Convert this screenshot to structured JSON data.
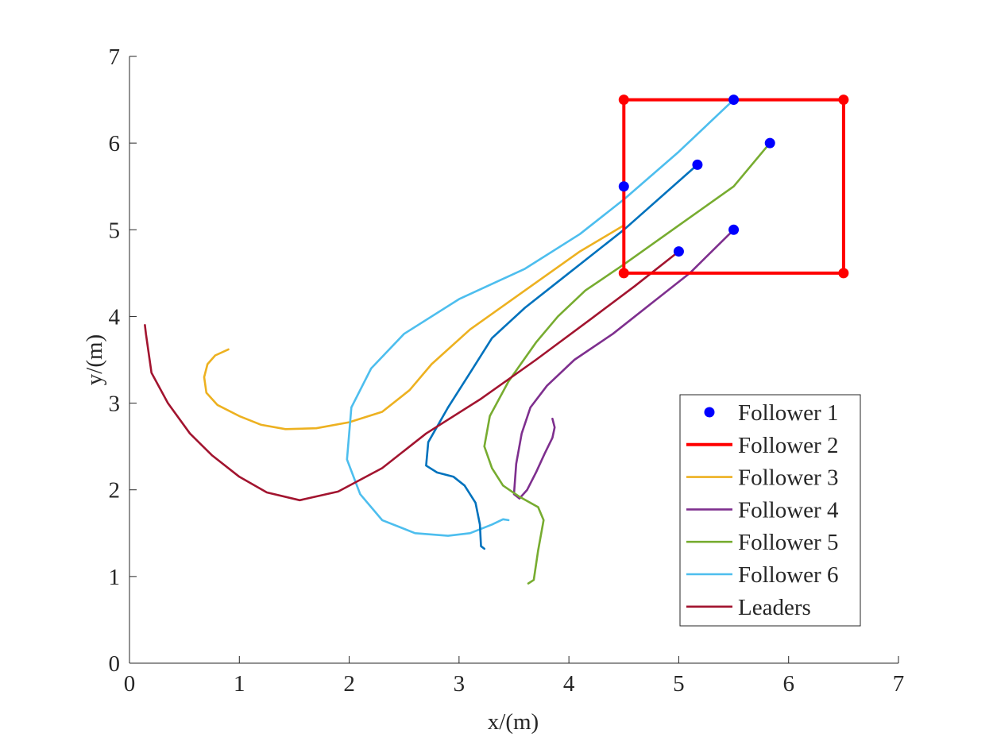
{
  "chart_data": {
    "type": "line",
    "xlabel": "x/(m)",
    "ylabel": "y/(m)",
    "xlim": [
      0,
      7
    ],
    "ylim": [
      0,
      7
    ],
    "xticks": [
      0,
      1,
      2,
      3,
      4,
      5,
      6,
      7
    ],
    "yticks": [
      0,
      1,
      2,
      3,
      4,
      5,
      6,
      7
    ],
    "grid": false,
    "legend_position": "bottom-right",
    "series": [
      {
        "name": "Follower 1",
        "kind": "markers",
        "color": "#0000ff",
        "points": [
          [
            4.5,
            5.5
          ],
          [
            5.17,
            5.75
          ],
          [
            5.5,
            6.5
          ],
          [
            5.83,
            6.0
          ],
          [
            5.5,
            5.0
          ],
          [
            5.0,
            4.75
          ]
        ]
      },
      {
        "name": "Follower 2",
        "kind": "polygon",
        "color": "#ff0000",
        "points": [
          [
            4.5,
            4.5
          ],
          [
            4.5,
            6.5
          ],
          [
            6.5,
            6.5
          ],
          [
            6.5,
            4.5
          ],
          [
            4.5,
            4.5
          ]
        ]
      },
      {
        "name": "Follower 3",
        "kind": "line",
        "color": "#edb120",
        "points": [
          [
            0.9,
            3.62
          ],
          [
            0.78,
            3.55
          ],
          [
            0.71,
            3.45
          ],
          [
            0.68,
            3.3
          ],
          [
            0.7,
            3.12
          ],
          [
            0.8,
            2.98
          ],
          [
            1.0,
            2.85
          ],
          [
            1.2,
            2.75
          ],
          [
            1.42,
            2.7
          ],
          [
            1.7,
            2.71
          ],
          [
            2.0,
            2.78
          ],
          [
            2.3,
            2.9
          ],
          [
            2.55,
            3.15
          ],
          [
            2.75,
            3.45
          ],
          [
            3.1,
            3.85
          ],
          [
            3.6,
            4.3
          ],
          [
            4.1,
            4.75
          ],
          [
            4.5,
            5.05
          ],
          [
            4.5,
            5.5
          ]
        ]
      },
      {
        "name": "Follower 4",
        "kind": "line",
        "color": "#7e2f8e",
        "points": [
          [
            3.85,
            2.82
          ],
          [
            3.87,
            2.72
          ],
          [
            3.85,
            2.6
          ],
          [
            3.78,
            2.42
          ],
          [
            3.7,
            2.2
          ],
          [
            3.62,
            2.0
          ],
          [
            3.55,
            1.9
          ],
          [
            3.5,
            1.95
          ],
          [
            3.52,
            2.3
          ],
          [
            3.57,
            2.65
          ],
          [
            3.65,
            2.95
          ],
          [
            3.8,
            3.2
          ],
          [
            4.05,
            3.5
          ],
          [
            4.4,
            3.8
          ],
          [
            4.8,
            4.2
          ],
          [
            5.1,
            4.5
          ],
          [
            5.5,
            5.0
          ]
        ]
      },
      {
        "name": "Follower 5",
        "kind": "line",
        "color": "#77ac30",
        "points": [
          [
            3.63,
            0.92
          ],
          [
            3.68,
            0.96
          ],
          [
            3.72,
            1.3
          ],
          [
            3.77,
            1.65
          ],
          [
            3.72,
            1.8
          ],
          [
            3.55,
            1.92
          ],
          [
            3.4,
            2.05
          ],
          [
            3.3,
            2.25
          ],
          [
            3.23,
            2.5
          ],
          [
            3.28,
            2.85
          ],
          [
            3.45,
            3.25
          ],
          [
            3.7,
            3.7
          ],
          [
            3.9,
            4.0
          ],
          [
            4.15,
            4.3
          ],
          [
            4.5,
            4.6
          ],
          [
            5.0,
            5.05
          ],
          [
            5.5,
            5.5
          ],
          [
            5.83,
            6.0
          ]
        ]
      },
      {
        "name": "Follower 6",
        "kind": "line",
        "color": "#4dbeee",
        "points": [
          [
            3.45,
            1.65
          ],
          [
            3.4,
            1.66
          ],
          [
            3.3,
            1.6
          ],
          [
            3.1,
            1.5
          ],
          [
            2.9,
            1.47
          ],
          [
            2.6,
            1.5
          ],
          [
            2.3,
            1.65
          ],
          [
            2.1,
            1.95
          ],
          [
            1.98,
            2.35
          ],
          [
            2.02,
            2.95
          ],
          [
            2.2,
            3.4
          ],
          [
            2.5,
            3.8
          ],
          [
            3.0,
            4.2
          ],
          [
            3.6,
            4.55
          ],
          [
            4.1,
            4.95
          ],
          [
            4.5,
            5.35
          ],
          [
            5.0,
            5.9
          ],
          [
            5.5,
            6.5
          ]
        ]
      },
      {
        "name": "",
        "kind": "line",
        "color": "#0072bd",
        "points": [
          [
            3.23,
            1.32
          ],
          [
            3.2,
            1.35
          ],
          [
            3.19,
            1.6
          ],
          [
            3.15,
            1.85
          ],
          [
            3.05,
            2.05
          ],
          [
            2.95,
            2.15
          ],
          [
            2.8,
            2.2
          ],
          [
            2.7,
            2.28
          ],
          [
            2.72,
            2.55
          ],
          [
            2.9,
            2.95
          ],
          [
            3.1,
            3.35
          ],
          [
            3.3,
            3.75
          ],
          [
            3.6,
            4.1
          ],
          [
            3.95,
            4.45
          ],
          [
            4.5,
            5.0
          ],
          [
            5.17,
            5.75
          ]
        ]
      },
      {
        "name": "Leaders",
        "kind": "line",
        "color": "#a2142f",
        "points": [
          [
            0.14,
            3.9
          ],
          [
            0.15,
            3.8
          ],
          [
            0.2,
            3.35
          ],
          [
            0.35,
            3.0
          ],
          [
            0.55,
            2.65
          ],
          [
            0.75,
            2.4
          ],
          [
            1.0,
            2.15
          ],
          [
            1.25,
            1.97
          ],
          [
            1.55,
            1.88
          ],
          [
            1.9,
            1.98
          ],
          [
            2.3,
            2.25
          ],
          [
            2.7,
            2.65
          ],
          [
            3.2,
            3.05
          ],
          [
            3.7,
            3.5
          ],
          [
            4.2,
            3.97
          ],
          [
            4.6,
            4.35
          ],
          [
            5.0,
            4.75
          ]
        ]
      }
    ]
  }
}
